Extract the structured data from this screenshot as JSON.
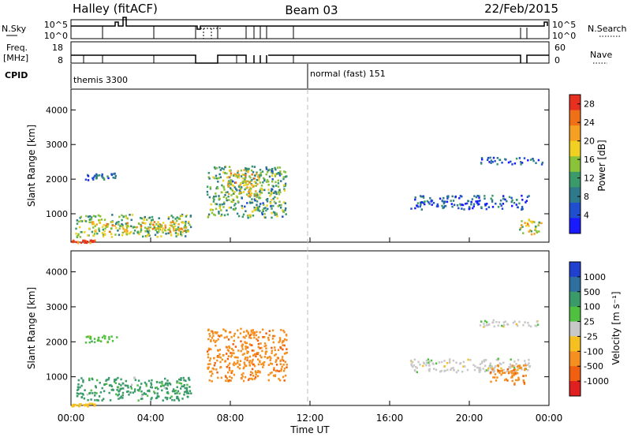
{
  "header": {
    "station": "Halley (fitACF)",
    "beam": "Beam 03",
    "date": "22/Feb/2015"
  },
  "strips": {
    "nsky_label": "N.Sky",
    "nsearch_label": "N.Search",
    "nsky_ticks": [
      "10^5",
      "10^0"
    ],
    "nsearch_ticks": [
      "10^5",
      "10^0"
    ],
    "freq_label": "Freq.",
    "freq_unit": "[MHz]",
    "freq_ticks": [
      "18",
      "8"
    ],
    "nave_label": "Nave",
    "nave_ticks": [
      "60",
      "0"
    ],
    "cpid_label": "CPID",
    "cpid_segments": [
      {
        "label": "themis 3300",
        "start_hour": 0,
        "end_hour": 12
      },
      {
        "label": "normal (fast) 151",
        "start_hour": 12,
        "end_hour": 24
      }
    ]
  },
  "chart_data": [
    {
      "type": "heatmap",
      "panel": "power",
      "xlabel": "",
      "ylabel": "Slant Range [km]",
      "xlim": [
        0,
        24
      ],
      "ylim": [
        180,
        4600
      ],
      "y_ticks": [
        1000,
        2000,
        3000,
        4000
      ],
      "colorbar": {
        "label": "Power [dB]",
        "ticks": [
          "4",
          "8",
          "12",
          "16",
          "20",
          "24",
          "28"
        ],
        "range": [
          0,
          30
        ],
        "colors": [
          "#1a1aff",
          "#1f4fcf",
          "#2f7a8a",
          "#3a9a6a",
          "#8ac23a",
          "#f0d020",
          "#f5a020",
          "#f07018",
          "#e83020"
        ]
      },
      "regions": [
        {
          "x": [
            0.7,
            2.3
          ],
          "y": [
            2000,
            2200
          ],
          "level": 6
        },
        {
          "x": [
            0.2,
            6.0
          ],
          "y": [
            350,
            1000
          ],
          "level": 14
        },
        {
          "x": [
            1.0,
            5.8
          ],
          "y": [
            500,
            800
          ],
          "level": 20
        },
        {
          "x": [
            6.8,
            10.8
          ],
          "y": [
            900,
            2400
          ],
          "level": 12
        },
        {
          "x": [
            7.8,
            9.5
          ],
          "y": [
            1500,
            2300
          ],
          "level": 18
        },
        {
          "x": [
            17.0,
            23.0
          ],
          "y": [
            1150,
            1550
          ],
          "level": 6
        },
        {
          "x": [
            20.5,
            23.7
          ],
          "y": [
            2450,
            2650
          ],
          "level": 5
        },
        {
          "x": [
            22.5,
            23.6
          ],
          "y": [
            400,
            900
          ],
          "level": 18
        },
        {
          "x": [
            0.0,
            1.2
          ],
          "y": [
            180,
            260
          ],
          "level": 28
        }
      ]
    },
    {
      "type": "heatmap",
      "panel": "velocity",
      "xlabel": "Time UT",
      "ylabel": "Slant Range [km]",
      "xlim": [
        0,
        24
      ],
      "ylim": [
        180,
        4600
      ],
      "y_ticks": [
        1000,
        2000,
        3000,
        4000
      ],
      "x_ticks": [
        "00:00",
        "04:00",
        "08:00",
        "12:00",
        "16:00",
        "20:00",
        "00:00"
      ],
      "colorbar": {
        "label": "Velocity [m s⁻¹]",
        "ticks": [
          "1000",
          "500",
          "100",
          "25",
          "-25",
          "-100",
          "-500",
          "-1000"
        ],
        "colors": [
          "#2040d0",
          "#2f6f9f",
          "#3a9a6a",
          "#50c040",
          "#c8c8c8",
          "#f5c020",
          "#f59020",
          "#f06010",
          "#e02020"
        ]
      },
      "regions": [
        {
          "x": [
            0.7,
            2.3
          ],
          "y": [
            2000,
            2200
          ],
          "level": 25
        },
        {
          "x": [
            0.2,
            6.0
          ],
          "y": [
            350,
            1000
          ],
          "level": 100
        },
        {
          "x": [
            6.8,
            10.8
          ],
          "y": [
            900,
            2400
          ],
          "level": -500
        },
        {
          "x": [
            17.0,
            23.0
          ],
          "y": [
            1150,
            1550
          ],
          "level": 0
        },
        {
          "x": [
            20.5,
            23.7
          ],
          "y": [
            2450,
            2650
          ],
          "level": 0
        },
        {
          "x": [
            21.0,
            22.8
          ],
          "y": [
            800,
            1400
          ],
          "level": -500
        },
        {
          "x": [
            0.0,
            1.2
          ],
          "y": [
            180,
            260
          ],
          "level": -100
        }
      ]
    }
  ]
}
